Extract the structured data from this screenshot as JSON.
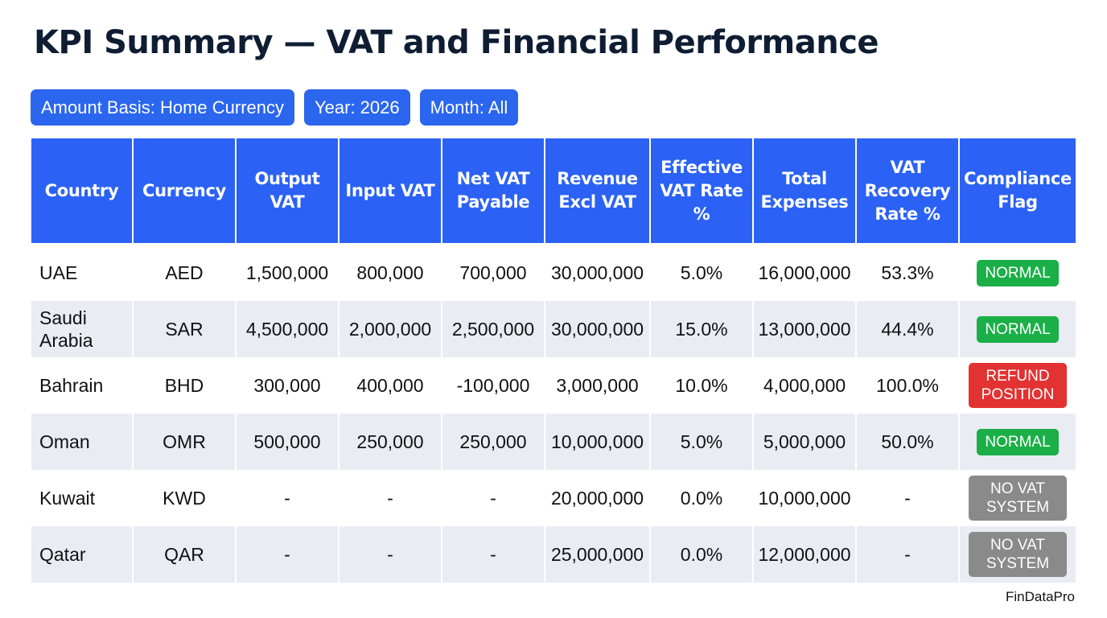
{
  "page": {
    "title": "KPI Summary — VAT and Financial Performance",
    "brand": "FinDataPro"
  },
  "filters": [
    {
      "label": "Amount Basis: Home Currency"
    },
    {
      "label": "Year: 2026"
    },
    {
      "label": "Month: All"
    }
  ],
  "colors": {
    "accent": "#2b62f5",
    "flag_normal": "#1aaf47",
    "flag_refund": "#e23232",
    "flag_novat": "#8a8a8a"
  },
  "table": {
    "columns": [
      "Country",
      "Currency",
      "Output VAT",
      "Input VAT",
      "Net VAT Payable",
      "Revenue Excl VAT",
      "Effective VAT Rate %",
      "Total Expenses",
      "VAT Recovery Rate %",
      "Compliance Flag"
    ],
    "rows": [
      {
        "country": "UAE",
        "currency": "AED",
        "output_vat": "1,500,000",
        "input_vat": "800,000",
        "net_vat_payable": "700,000",
        "revenue_excl_vat": "30,000,000",
        "effective_vat_rate": "5.0%",
        "total_expenses": "16,000,000",
        "vat_recovery_rate": "53.3%",
        "flag": "NORMAL",
        "flag_type": "normal"
      },
      {
        "country": "Saudi Arabia",
        "currency": "SAR",
        "output_vat": "4,500,000",
        "input_vat": "2,000,000",
        "net_vat_payable": "2,500,000",
        "revenue_excl_vat": "30,000,000",
        "effective_vat_rate": "15.0%",
        "total_expenses": "13,000,000",
        "vat_recovery_rate": "44.4%",
        "flag": "NORMAL",
        "flag_type": "normal"
      },
      {
        "country": "Bahrain",
        "currency": "BHD",
        "output_vat": "300,000",
        "input_vat": "400,000",
        "net_vat_payable": "-100,000",
        "revenue_excl_vat": "3,000,000",
        "effective_vat_rate": "10.0%",
        "total_expenses": "4,000,000",
        "vat_recovery_rate": "100.0%",
        "flag": "REFUND POSITION",
        "flag_type": "refund"
      },
      {
        "country": "Oman",
        "currency": "OMR",
        "output_vat": "500,000",
        "input_vat": "250,000",
        "net_vat_payable": "250,000",
        "revenue_excl_vat": "10,000,000",
        "effective_vat_rate": "5.0%",
        "total_expenses": "5,000,000",
        "vat_recovery_rate": "50.0%",
        "flag": "NORMAL",
        "flag_type": "normal"
      },
      {
        "country": "Kuwait",
        "currency": "KWD",
        "output_vat": "-",
        "input_vat": "-",
        "net_vat_payable": "-",
        "revenue_excl_vat": "20,000,000",
        "effective_vat_rate": "0.0%",
        "total_expenses": "10,000,000",
        "vat_recovery_rate": "-",
        "flag": "NO VAT SYSTEM",
        "flag_type": "novat"
      },
      {
        "country": "Qatar",
        "currency": "QAR",
        "output_vat": "-",
        "input_vat": "-",
        "net_vat_payable": "-",
        "revenue_excl_vat": "25,000,000",
        "effective_vat_rate": "0.0%",
        "total_expenses": "12,000,000",
        "vat_recovery_rate": "-",
        "flag": "NO VAT SYSTEM",
        "flag_type": "novat"
      }
    ]
  }
}
